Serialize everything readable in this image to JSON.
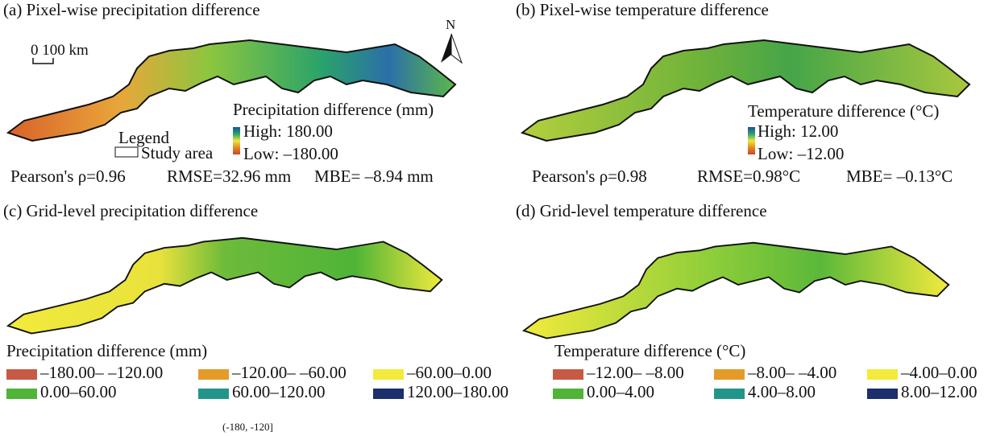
{
  "panels": {
    "a": {
      "title": "(a) Pixel-wise precipitation difference",
      "legend_title": "Precipitation difference (mm)",
      "high": "High: 180.00",
      "low": "Low: –180.00",
      "stats": {
        "pearson": "Pearson's ρ=0.96",
        "rmse": "RMSE=32.96 mm",
        "mbe": "MBE= –8.94 mm"
      }
    },
    "b": {
      "title": "(b) Pixel-wise temperature difference",
      "legend_title": "Temperature difference (°C)",
      "high": "High: 12.00",
      "low": "Low: –12.00",
      "stats": {
        "pearson": "Pearson's ρ=0.98",
        "rmse": "RMSE=0.98°C",
        "mbe": "MBE= –0.13°C"
      }
    },
    "c": {
      "title": "(c) Grid-level precipitation difference",
      "legend_title": "Precipitation difference (mm)",
      "classes": [
        "–180.00– –120.00",
        "–120.00– –60.00",
        "–60.00–0.00",
        "0.00–60.00",
        "60.00–120.00",
        "120.00–180.00"
      ]
    },
    "d": {
      "title": "(d) Grid-level temperature difference",
      "legend_title": "Temperature difference (°C)",
      "classes": [
        "–12.00– –8.00",
        "–8.00– –4.00",
        "–4.00–0.00",
        "0.00–4.00",
        "4.00–8.00",
        "8.00–12.00"
      ]
    }
  },
  "class_colors": [
    "#c65a45",
    "#e49b2a",
    "#f2ea3c",
    "#4fb437",
    "#22958a",
    "#1a2f6b"
  ],
  "map_legend": {
    "title": "Legend",
    "item": "Study area",
    "scale": "0 100 km",
    "north": "N"
  },
  "footer_label": "(-180, -120]"
}
